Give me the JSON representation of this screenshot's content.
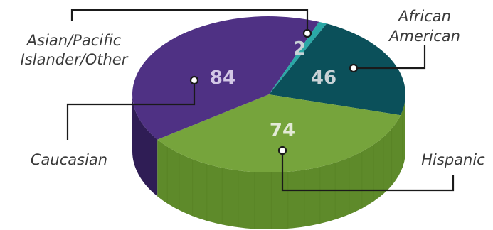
{
  "chart_data": {
    "type": "pie",
    "categories": [
      "African American",
      "Hispanic",
      "Caucasian",
      "Asian/Pacific Islander/Other"
    ],
    "values": [
      46,
      74,
      84,
      2
    ],
    "colors": {
      "African American": "#0b505a",
      "Hispanic": "#76a43c",
      "Caucasian": "#4f3184",
      "Asian/Pacific Islander/Other": "#2aa8a6"
    },
    "legend_placement": "callouts",
    "labels": {
      "african_american": [
        "African",
        "American"
      ],
      "hispanic": "Hispanic",
      "caucasian": "Caucasian",
      "asian": [
        "Asian/Pacific",
        "Islander/Other"
      ]
    },
    "value_labels": {
      "african_american": "46",
      "hispanic": "74",
      "caucasian": "84",
      "asian": "2"
    }
  }
}
